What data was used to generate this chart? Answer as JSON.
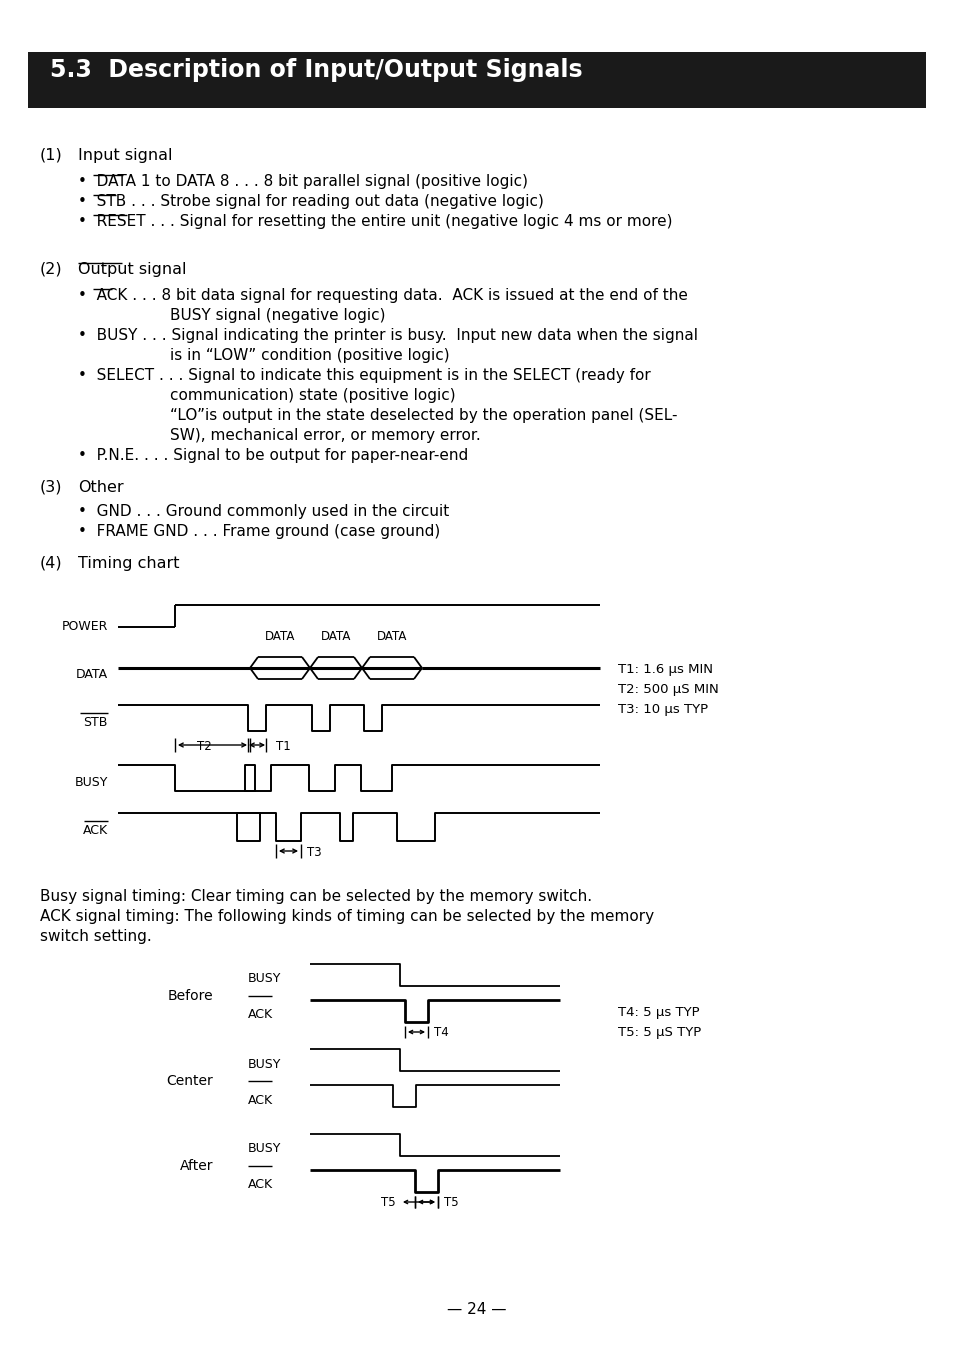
{
  "title": "5.3  Description of Input/Output Signals",
  "title_bg": "#1a1a1a",
  "title_color": "#ffffff",
  "page_number": "— 24 —",
  "busy_text1": "Busy signal timing: Clear timing can be selected by the memory switch.",
  "ack_text1": "ACK signal timing: The following kinds of timing can be selected by the memory",
  "ack_text2": "switch setting."
}
